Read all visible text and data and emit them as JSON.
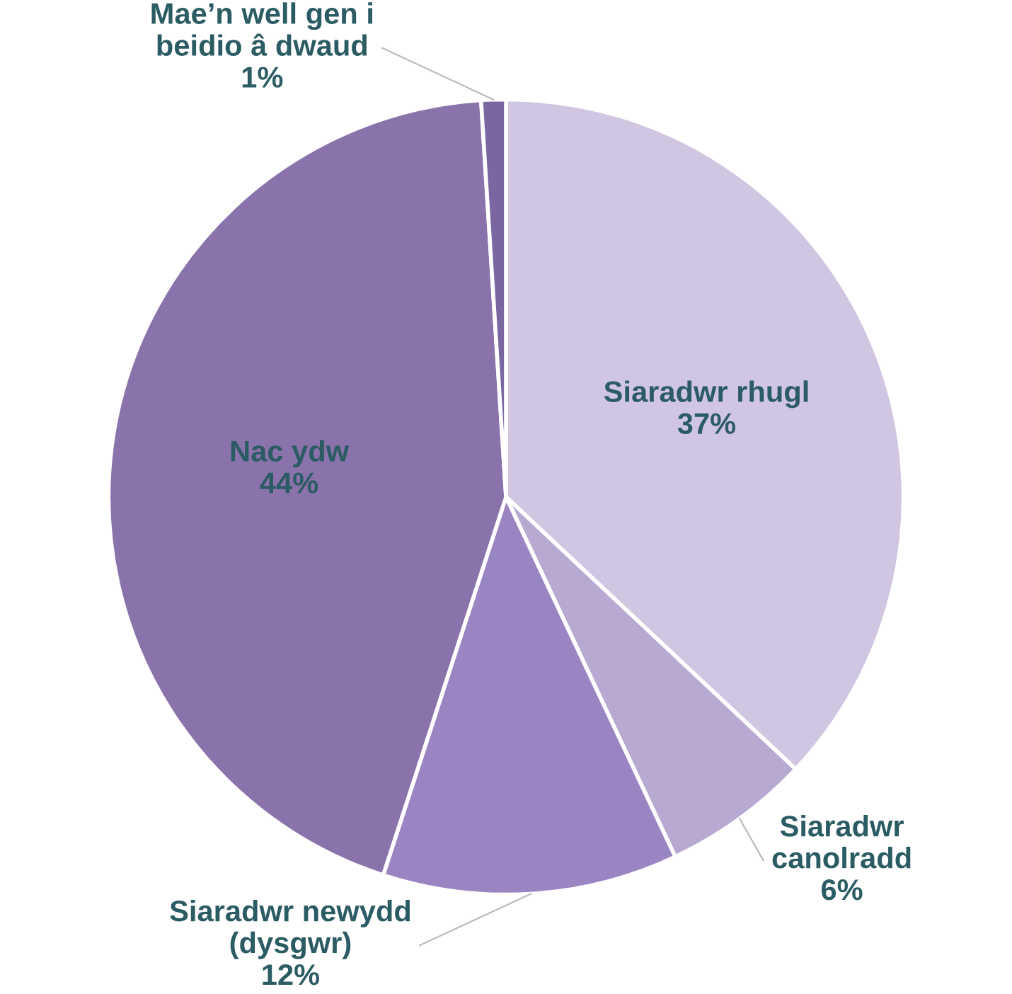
{
  "chart_data": {
    "type": "pie",
    "categories": [
      "Siaradwr rhugl",
      "Siaradwr\ncanolradd",
      "Siaradwr newydd\n(dysgwr)",
      "Nac ydw",
      "Mae’n well gen i\nbeidio â dwaud"
    ],
    "values": [
      37,
      6,
      12,
      44,
      1
    ],
    "colors": [
      "#d0c6e1",
      "#b8a9d2",
      "#9b84c2",
      "#8a73ab",
      "#7a66a0"
    ],
    "value_labels": [
      "37%",
      "6%",
      "12%",
      "44%",
      "1%"
    ]
  }
}
